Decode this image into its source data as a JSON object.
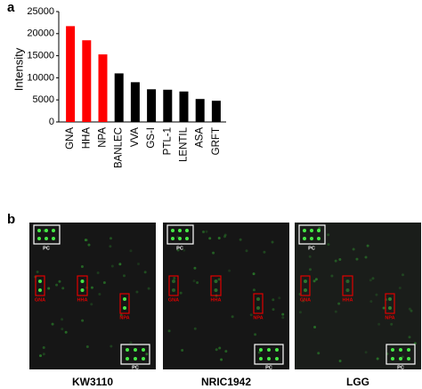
{
  "chart_data": {
    "type": "bar",
    "panel_label": "a",
    "ylabel": "Intensity",
    "categories": [
      "GNA",
      "HHA",
      "NPA",
      "BANLEC",
      "VVA",
      "GS-I",
      "PTL-1",
      "LENTIL",
      "ASA",
      "GRFT"
    ],
    "values": [
      21700,
      18500,
      15300,
      11000,
      9000,
      7400,
      7300,
      6900,
      5200,
      4800
    ],
    "colors": [
      "#ff0000",
      "#ff0000",
      "#ff0000",
      "#000000",
      "#000000",
      "#000000",
      "#000000",
      "#000000",
      "#000000",
      "#000000"
    ],
    "ylim": [
      0,
      25000
    ],
    "yticks": [
      0,
      5000,
      10000,
      15000,
      20000,
      25000
    ]
  },
  "figure_b": {
    "panel_label": "b",
    "panels": [
      {
        "name": "KW3110",
        "spot_labels": [
          "PC",
          "GNA",
          "HHA",
          "NPA",
          "PC"
        ]
      },
      {
        "name": "NRIC1942",
        "spot_labels": [
          "PC",
          "GNA",
          "HHA",
          "NPA",
          "PC"
        ]
      },
      {
        "name": "LGG",
        "spot_labels": [
          "PC",
          "GNA",
          "HHA",
          "NPA",
          "PC"
        ]
      }
    ]
  }
}
